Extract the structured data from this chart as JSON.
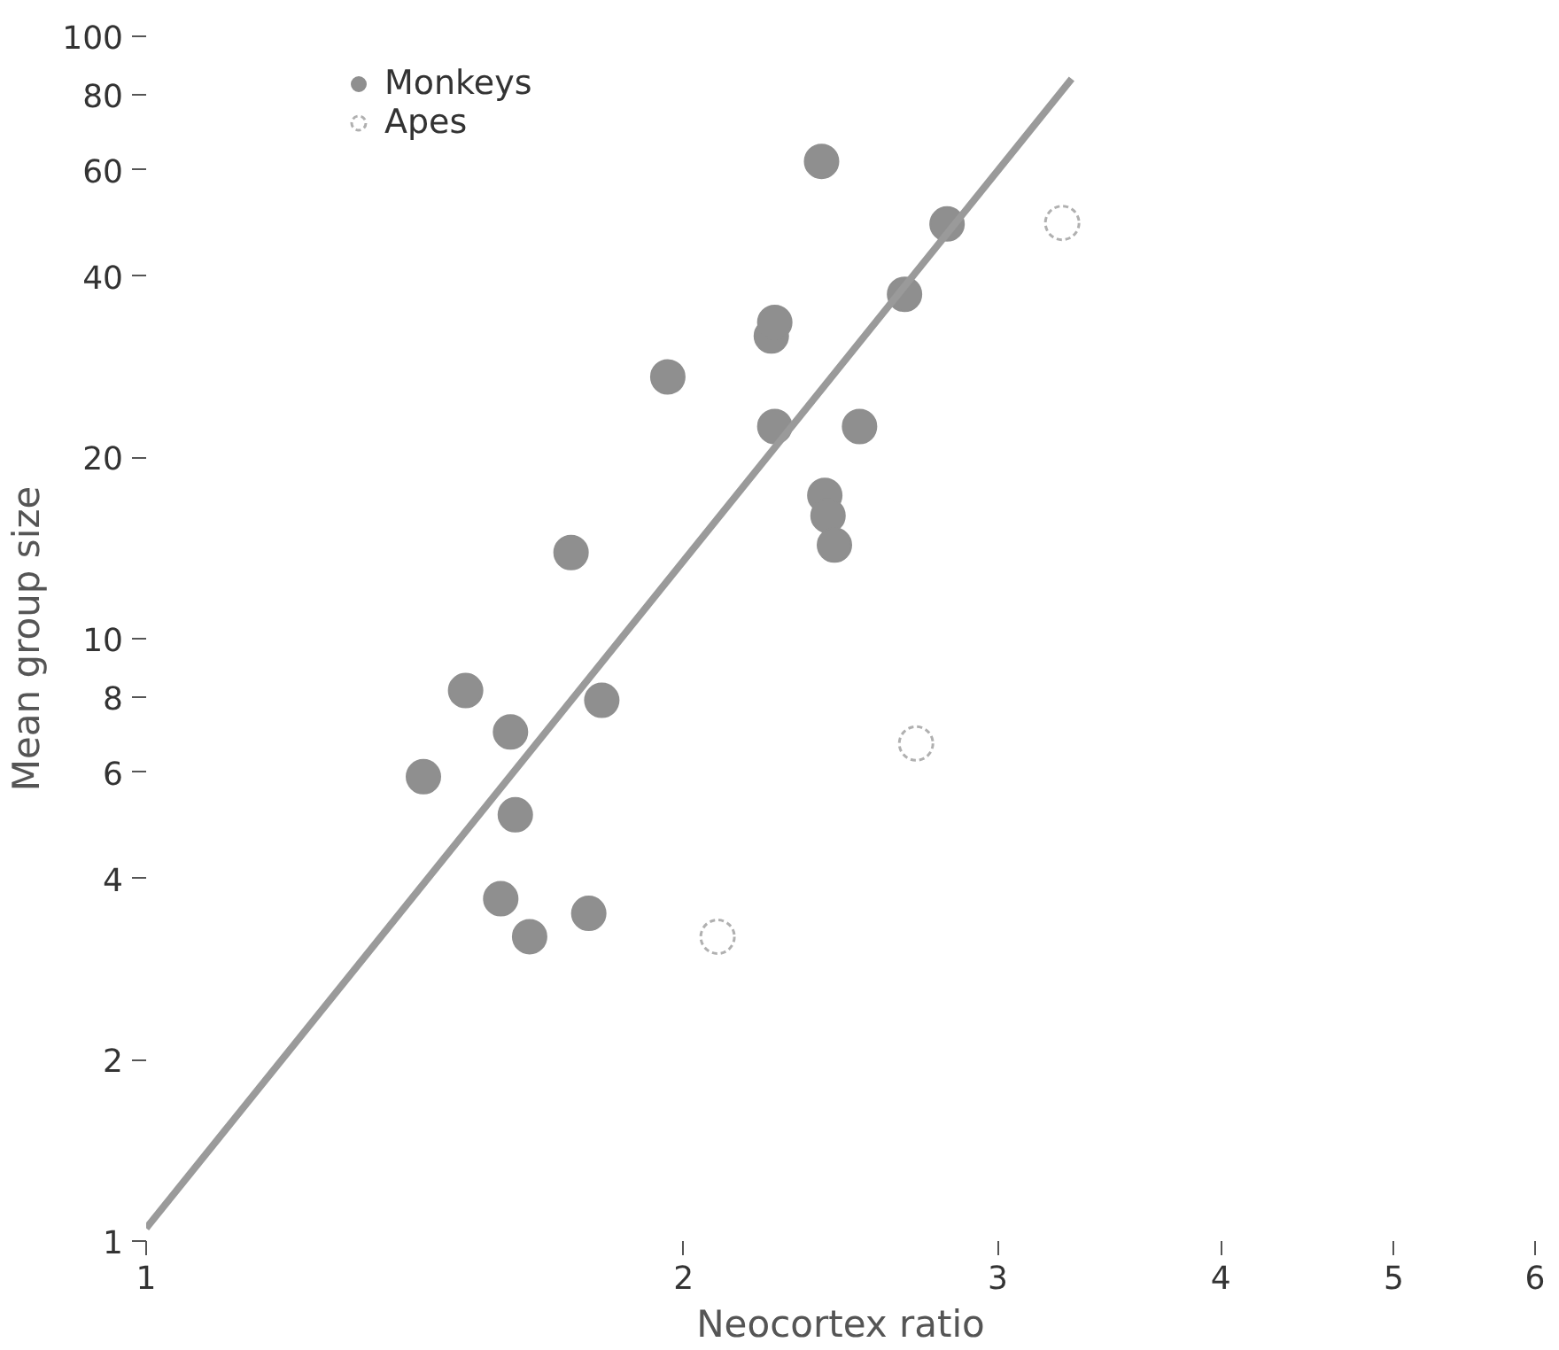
{
  "chart_data": {
    "type": "scatter",
    "xlabel": "Neocortex ratio",
    "ylabel": "Mean group size",
    "log": "xy",
    "grid": false,
    "legend": "top left",
    "xlim": [
      1,
      6
    ],
    "xticks": [
      1,
      2,
      3,
      4,
      5,
      6
    ],
    "ylim": [
      1,
      100
    ],
    "yticks": [
      1,
      2,
      4,
      6,
      8,
      10,
      20,
      40,
      60,
      80,
      100
    ],
    "series": [
      {
        "name": "Monkeys",
        "color": "#8f8f8f",
        "marker": "circle",
        "x": [
          1.43,
          1.51,
          1.6,
          1.61,
          1.58,
          1.64,
          1.77,
          1.8,
          1.73,
          1.96,
          2.25,
          2.24,
          2.25,
          2.39,
          2.4,
          2.41,
          2.43,
          2.51,
          2.66,
          2.81
        ],
        "values": [
          5.9,
          8.2,
          7.0,
          5.1,
          3.7,
          3.2,
          3.5,
          7.9,
          13.9,
          27.2,
          22.5,
          31.8,
          33.5,
          62,
          17.3,
          16,
          14.3,
          22.5,
          37.3,
          48.8
        ]
      },
      {
        "name": "Apes",
        "color": "#b0b0b0",
        "marker": "circle",
        "x": [
          2.09,
          2.7,
          3.26
        ],
        "values": [
          3.2,
          6.7,
          49
        ],
        "line_style": "dashed"
      },
      {
        "type": "line",
        "color": "#9a9a9a",
        "x": [
          1.0,
          3.3
        ],
        "values": [
          1.05,
          85
        ],
        "line_style": "solid",
        "marker": "none"
      }
    ]
  }
}
